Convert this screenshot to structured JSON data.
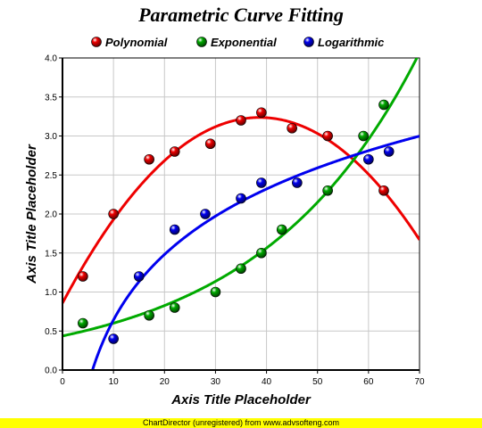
{
  "chart_data": {
    "type": "scatter",
    "title": "Parametric Curve Fitting",
    "xlabel": "Axis Title Placeholder",
    "ylabel": "Axis Title Placeholder",
    "xlim": [
      0,
      70
    ],
    "ylim": [
      0,
      4
    ],
    "x_ticks": [
      "0",
      "10",
      "20",
      "30",
      "40",
      "50",
      "60",
      "70"
    ],
    "y_ticks": [
      "0.0",
      "0.5",
      "1.0",
      "1.5",
      "2.0",
      "2.5",
      "3.0",
      "3.5",
      "4.0"
    ],
    "grid": true,
    "legend_position": "top",
    "series": [
      {
        "name": "Polynomial",
        "color": "#ee0000",
        "fit": "polynomial",
        "x": [
          4,
          10,
          17,
          22,
          29,
          35,
          39,
          45,
          52,
          63
        ],
        "y": [
          1.2,
          2.0,
          2.7,
          2.8,
          2.9,
          3.2,
          3.3,
          3.1,
          3.0,
          2.3
        ]
      },
      {
        "name": "Exponential",
        "color": "#00aa00",
        "fit": "exponential",
        "x": [
          4,
          17,
          22,
          30,
          35,
          39,
          43,
          52,
          59,
          63
        ],
        "y": [
          0.6,
          0.7,
          0.8,
          1.0,
          1.3,
          1.5,
          1.8,
          2.3,
          3.0,
          3.4
        ]
      },
      {
        "name": "Logarithmic",
        "color": "#0000ee",
        "fit": "logarithmic",
        "x": [
          10,
          15,
          22,
          28,
          35,
          39,
          46,
          60,
          64
        ],
        "y": [
          0.4,
          1.2,
          1.8,
          2.0,
          2.2,
          2.4,
          2.4,
          2.7,
          2.8
        ]
      }
    ]
  },
  "footer": {
    "text": "ChartDirector (unregistered) from www.advsofteng.com"
  }
}
